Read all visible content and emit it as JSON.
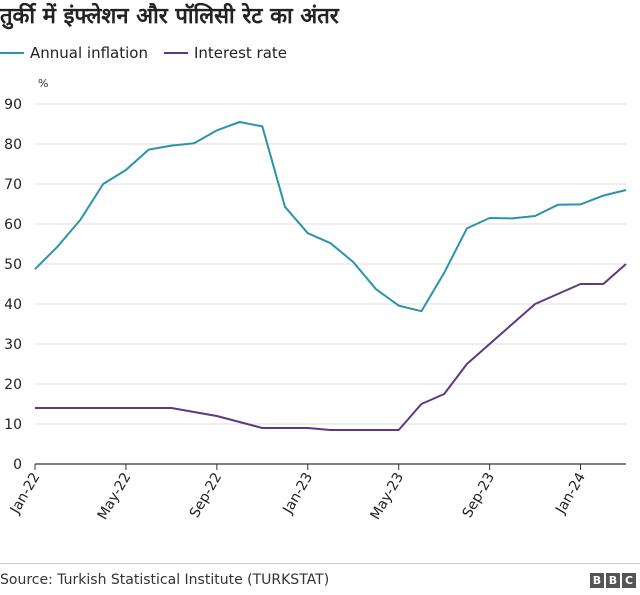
{
  "title": "तुर्की में इंफ्लेशन और पॉलिसी रेट का अंतर",
  "source": "Source: Turkish Statistical Institute (TURKSTAT)",
  "brand": [
    "B",
    "B",
    "C"
  ],
  "unit_label": "%",
  "colors": {
    "annual_inflation": "#2b94ab",
    "interest_rate": "#5a3a82",
    "grid": "#dcdcdc",
    "axis": "#333333"
  },
  "chart_data": {
    "type": "line",
    "ylim": [
      0,
      90
    ],
    "yticks": [
      0,
      10,
      20,
      30,
      40,
      50,
      60,
      70,
      80,
      90
    ],
    "x_tick_labels": [
      {
        "index": 0,
        "label": "Jan-22"
      },
      {
        "index": 4,
        "label": "May-22"
      },
      {
        "index": 8,
        "label": "Sep-22"
      },
      {
        "index": 12,
        "label": "Jan-23"
      },
      {
        "index": 16,
        "label": "May-23"
      },
      {
        "index": 20,
        "label": "Sep-23"
      },
      {
        "index": 24,
        "label": "Jan-24"
      }
    ],
    "x": [
      "Jan-22",
      "Feb-22",
      "Mar-22",
      "Apr-22",
      "May-22",
      "Jun-22",
      "Jul-22",
      "Aug-22",
      "Sep-22",
      "Oct-22",
      "Nov-22",
      "Dec-22",
      "Jan-23",
      "Feb-23",
      "Mar-23",
      "Apr-23",
      "May-23",
      "Jun-23",
      "Jul-23",
      "Aug-23",
      "Sep-23",
      "Oct-23",
      "Nov-23",
      "Dec-23",
      "Jan-24",
      "Feb-24",
      "Mar-24"
    ],
    "legend_position": "top-left",
    "grid": true,
    "series": [
      {
        "name": "Annual inflation",
        "color": "#2b94ab",
        "values": [
          48.7,
          54.4,
          61.1,
          70.0,
          73.5,
          78.6,
          79.6,
          80.2,
          83.4,
          85.5,
          84.4,
          64.3,
          57.7,
          55.2,
          50.5,
          43.7,
          39.6,
          38.2,
          47.8,
          58.9,
          61.5,
          61.4,
          62.0,
          64.8,
          64.9,
          67.1,
          68.5
        ]
      },
      {
        "name": "Interest rate",
        "color": "#5a3a82",
        "values": [
          14,
          14,
          14,
          14,
          14,
          14,
          14,
          13,
          12,
          10.5,
          9,
          9,
          9,
          8.5,
          8.5,
          8.5,
          8.5,
          15,
          17.5,
          25,
          30,
          35,
          40,
          42.5,
          45,
          45,
          50
        ]
      }
    ]
  }
}
